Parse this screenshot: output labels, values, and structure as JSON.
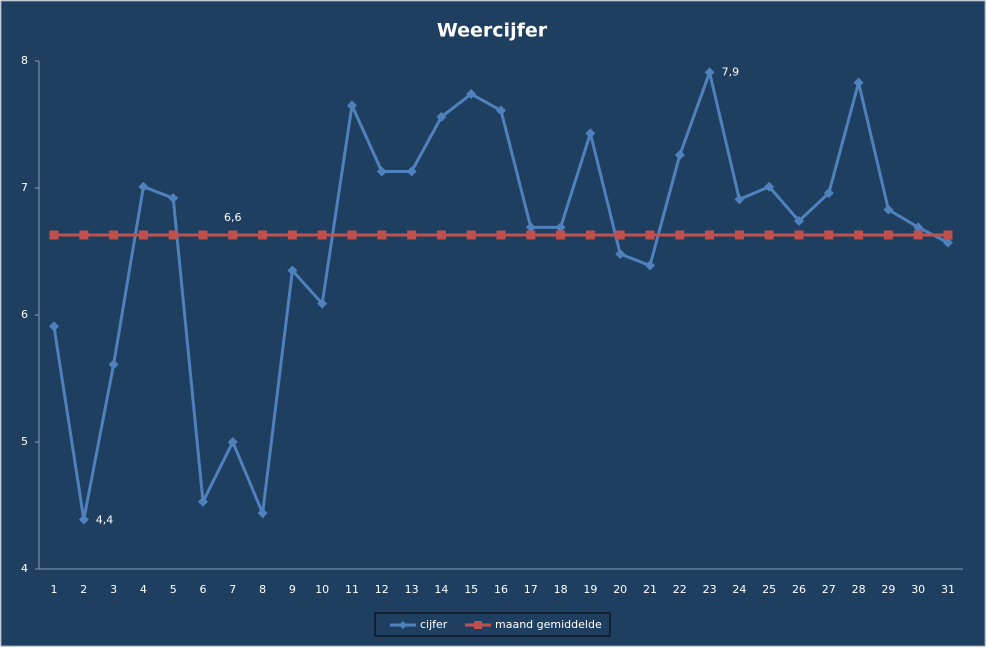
{
  "chart_data": {
    "type": "line",
    "title": "Weercijfer",
    "categories": [
      "1",
      "2",
      "3",
      "4",
      "5",
      "6",
      "7",
      "8",
      "9",
      "10",
      "11",
      "12",
      "13",
      "14",
      "15",
      "16",
      "17",
      "18",
      "19",
      "20",
      "21",
      "22",
      "23",
      "24",
      "25",
      "26",
      "27",
      "28",
      "29",
      "30",
      "31"
    ],
    "series": [
      {
        "name": "cijfer",
        "color": "#4f81bd",
        "marker": "diamond",
        "values": [
          5.91,
          4.39,
          5.61,
          7.01,
          6.92,
          4.53,
          5.0,
          4.44,
          6.35,
          6.09,
          7.65,
          7.13,
          7.13,
          7.56,
          7.74,
          7.61,
          6.69,
          6.69,
          7.43,
          6.48,
          6.39,
          7.26,
          7.91,
          6.91,
          7.01,
          6.74,
          6.96,
          7.83,
          6.83,
          6.69,
          6.57
        ],
        "value_labels": [
          null,
          "4,4",
          null,
          null,
          null,
          null,
          null,
          null,
          null,
          null,
          null,
          null,
          null,
          null,
          null,
          null,
          null,
          null,
          null,
          null,
          null,
          null,
          "7,9",
          null,
          null,
          null,
          null,
          null,
          null,
          null,
          null
        ]
      },
      {
        "name": "maand gemiddelde",
        "color": "#c0504d",
        "marker": "square",
        "values": [
          6.63,
          6.63,
          6.63,
          6.63,
          6.63,
          6.63,
          6.63,
          6.63,
          6.63,
          6.63,
          6.63,
          6.63,
          6.63,
          6.63,
          6.63,
          6.63,
          6.63,
          6.63,
          6.63,
          6.63,
          6.63,
          6.63,
          6.63,
          6.63,
          6.63,
          6.63,
          6.63,
          6.63,
          6.63,
          6.63,
          6.63
        ],
        "value_labels": [
          null,
          null,
          null,
          null,
          null,
          null,
          "6,6",
          null,
          null,
          null,
          null,
          null,
          null,
          null,
          null,
          null,
          null,
          null,
          null,
          null,
          null,
          null,
          null,
          null,
          null,
          null,
          null,
          null,
          null,
          null,
          null
        ]
      }
    ],
    "ylim": [
      4,
      8
    ],
    "yticks": [
      4,
      5,
      6,
      7,
      8
    ],
    "grid": false,
    "legend": "bottom"
  }
}
